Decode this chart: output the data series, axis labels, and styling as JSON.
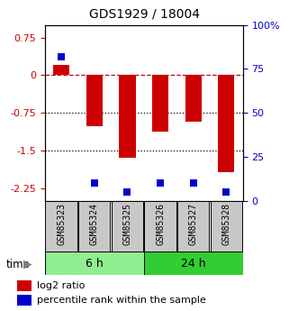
{
  "title": "GDS1929 / 18004",
  "samples": [
    "GSM85323",
    "GSM85324",
    "GSM85325",
    "GSM85326",
    "GSM85327",
    "GSM85328"
  ],
  "log2_ratios": [
    0.21,
    -1.02,
    -1.65,
    -1.12,
    -0.92,
    -1.93
  ],
  "percentile_ranks": [
    82,
    10,
    5,
    10,
    10,
    5
  ],
  "groups": [
    {
      "label": "6 h",
      "indices": [
        0,
        1,
        2
      ],
      "color": "#90EE90"
    },
    {
      "label": "24 h",
      "indices": [
        3,
        4,
        5
      ],
      "color": "#32CD32"
    }
  ],
  "bar_color": "#CC0000",
  "pct_color": "#0000CC",
  "ylim_left": [
    -2.5,
    1.0
  ],
  "ylim_right": [
    0,
    100
  ],
  "yticks_left": [
    0.75,
    0.0,
    -0.75,
    -1.5,
    -2.25
  ],
  "yticks_right": [
    100,
    75,
    50,
    25,
    0
  ],
  "hlines": [
    0.0,
    -0.75,
    -1.5
  ],
  "hline_styles": [
    "dashed",
    "dotted",
    "dotted"
  ],
  "hline_colors": [
    "#CC0000",
    "black",
    "black"
  ],
  "bar_width": 0.5,
  "pct_marker_size": 30,
  "label_box_color": "#C8C8C8",
  "title_fontsize": 10,
  "tick_fontsize": 8,
  "sample_fontsize": 7
}
